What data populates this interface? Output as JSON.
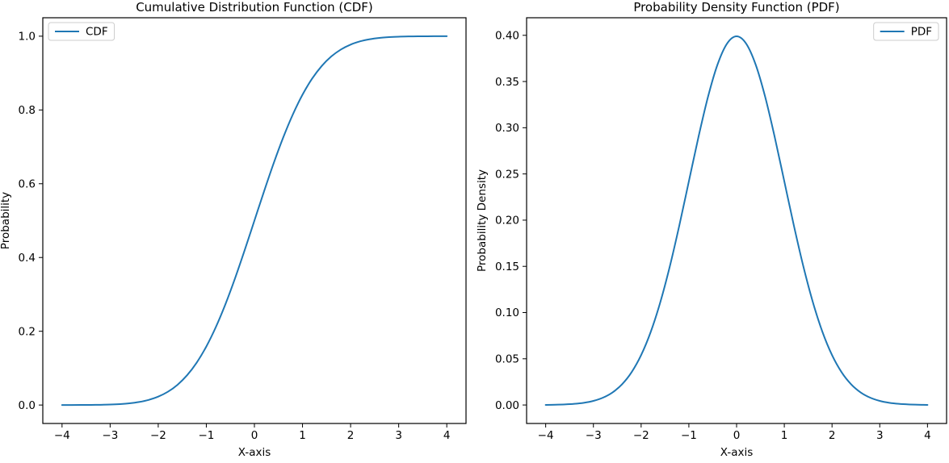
{
  "figure": {
    "background": "#ffffff",
    "text_color": "#000000",
    "spine_color": "#000000",
    "legend_border_color": "#cccccc",
    "accent_line_color": "#1f77b4"
  },
  "chart_data": [
    {
      "id": "cdf",
      "type": "line",
      "title": "Cumulative Distribution Function (CDF)",
      "xlabel": "X-axis",
      "ylabel": "Probability",
      "grid": false,
      "xlim": [
        -4.4,
        4.4
      ],
      "ylim": [
        -0.05,
        1.05
      ],
      "xticks": [
        -4,
        -3,
        -2,
        -1,
        0,
        1,
        2,
        3,
        4
      ],
      "xtick_labels": [
        "−4",
        "−3",
        "−2",
        "−1",
        "0",
        "1",
        "2",
        "3",
        "4"
      ],
      "yticks": [
        0.0,
        0.2,
        0.4,
        0.6,
        0.8,
        1.0
      ],
      "ytick_labels": [
        "0.0",
        "0.2",
        "0.4",
        "0.6",
        "0.8",
        "1.0"
      ],
      "legend": {
        "position": "upper-left",
        "entries": [
          {
            "label": "CDF",
            "color": "#1f77b4"
          }
        ]
      },
      "series": [
        {
          "name": "CDF",
          "color": "#1f77b4",
          "x": [
            -4,
            -3.8,
            -3.6,
            -3.4,
            -3.2,
            -3,
            -2.8,
            -2.6,
            -2.4,
            -2.2,
            -2,
            -1.8,
            -1.6,
            -1.4,
            -1.2,
            -1,
            -0.8,
            -0.6,
            -0.4,
            -0.2,
            0,
            0.2,
            0.4,
            0.6,
            0.8,
            1,
            1.2,
            1.4,
            1.6,
            1.8,
            2,
            2.2,
            2.4,
            2.6,
            2.8,
            3,
            3.2,
            3.4,
            3.6,
            3.8,
            4
          ],
          "y": [
            3e-05,
            7e-05,
            0.00016,
            0.00034,
            0.00069,
            0.00135,
            0.00256,
            0.00466,
            0.0082,
            0.0139,
            0.02275,
            0.03593,
            0.0548,
            0.08076,
            0.11507,
            0.15866,
            0.21186,
            0.27425,
            0.34458,
            0.42074,
            0.5,
            0.57926,
            0.65542,
            0.72575,
            0.78814,
            0.84134,
            0.88493,
            0.91924,
            0.9452,
            0.96407,
            0.97725,
            0.9861,
            0.9918,
            0.99534,
            0.99744,
            0.99865,
            0.99931,
            0.99966,
            0.99984,
            0.99993,
            0.99997
          ]
        }
      ]
    },
    {
      "id": "pdf",
      "type": "line",
      "title": "Probability Density Function (PDF)",
      "xlabel": "X-axis",
      "ylabel": "Probability Density",
      "grid": false,
      "xlim": [
        -4.4,
        4.4
      ],
      "ylim": [
        -0.02,
        0.419
      ],
      "xticks": [
        -4,
        -3,
        -2,
        -1,
        0,
        1,
        2,
        3,
        4
      ],
      "xtick_labels": [
        "−4",
        "−3",
        "−2",
        "−1",
        "0",
        "1",
        "2",
        "3",
        "4"
      ],
      "yticks": [
        0.0,
        0.05,
        0.1,
        0.15,
        0.2,
        0.25,
        0.3,
        0.35,
        0.4
      ],
      "ytick_labels": [
        "0.00",
        "0.05",
        "0.10",
        "0.15",
        "0.20",
        "0.25",
        "0.30",
        "0.35",
        "0.40"
      ],
      "legend": {
        "position": "upper-right",
        "entries": [
          {
            "label": "PDF",
            "color": "#1f77b4"
          }
        ]
      },
      "series": [
        {
          "name": "PDF",
          "color": "#1f77b4",
          "x": [
            -4,
            -3.8,
            -3.6,
            -3.4,
            -3.2,
            -3,
            -2.8,
            -2.6,
            -2.4,
            -2.2,
            -2,
            -1.8,
            -1.6,
            -1.4,
            -1.2,
            -1,
            -0.8,
            -0.6,
            -0.4,
            -0.2,
            0,
            0.2,
            0.4,
            0.6,
            0.8,
            1,
            1.2,
            1.4,
            1.6,
            1.8,
            2,
            2.2,
            2.4,
            2.6,
            2.8,
            3,
            3.2,
            3.4,
            3.6,
            3.8,
            4
          ],
          "y": [
            0.00013,
            0.00029,
            0.00061,
            0.00123,
            0.00238,
            0.00443,
            0.00792,
            0.01358,
            0.02239,
            0.03547,
            0.05399,
            0.07895,
            0.11092,
            0.14973,
            0.19419,
            0.24197,
            0.28969,
            0.33322,
            0.36827,
            0.39104,
            0.39894,
            0.39104,
            0.36827,
            0.33322,
            0.28969,
            0.24197,
            0.19419,
            0.14973,
            0.11092,
            0.07895,
            0.05399,
            0.03547,
            0.02239,
            0.01358,
            0.00792,
            0.00443,
            0.00238,
            0.00123,
            0.00061,
            0.00029,
            0.00013
          ]
        }
      ]
    }
  ]
}
